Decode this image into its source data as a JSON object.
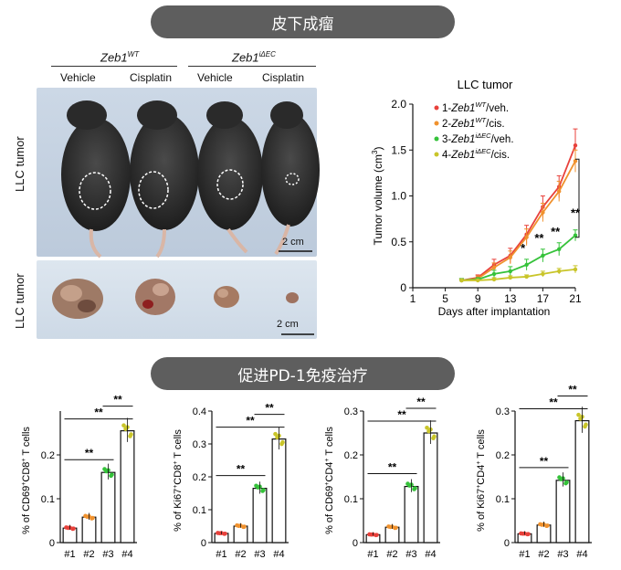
{
  "banners": {
    "top": "皮下成瘤",
    "mid": "促进PD-1免疫治疗"
  },
  "photo": {
    "groups": [
      {
        "base": "Zeb1",
        "sup": "WT"
      },
      {
        "base": "Zeb1",
        "sup": "iΔEC"
      }
    ],
    "columns": [
      "Vehicle",
      "Cisplatin",
      "Vehicle",
      "Cisplatin"
    ],
    "row_label_mice": "LLC tumor",
    "row_label_tumors": "LLC tumor",
    "scale_mice": "2 cm",
    "scale_tumors": "2 cm"
  },
  "colors": {
    "g1": "#e8413b",
    "g2": "#f0922e",
    "g3": "#35c23a",
    "g4": "#c9c52a"
  },
  "chart_data": [
    {
      "type": "line",
      "title": "LLC tumor",
      "xlabel": "Days after implantation",
      "ylabel": "Tumor volume (cm3)",
      "x": [
        7,
        9,
        11,
        13,
        15,
        17,
        19,
        21
      ],
      "xticks": [
        1,
        5,
        9,
        13,
        17,
        21
      ],
      "xlim": [
        1,
        21
      ],
      "ylim": [
        0,
        2.0
      ],
      "yticks": [
        "0",
        "0.5",
        "1.0",
        "1.5",
        "2.0"
      ],
      "series": [
        {
          "name": "1-Zeb1WT/veh.",
          "legend_base": "1-Zeb1",
          "legend_sup": "WT",
          "legend_tail": "/veh.",
          "values": [
            0.08,
            0.11,
            0.25,
            0.35,
            0.58,
            0.88,
            1.1,
            1.55
          ],
          "err": [
            0.02,
            0.03,
            0.06,
            0.08,
            0.1,
            0.12,
            0.12,
            0.18
          ]
        },
        {
          "name": "2-Zeb1WT/cis.",
          "legend_base": "2-Zeb1",
          "legend_sup": "WT",
          "legend_tail": "/cis.",
          "values": [
            0.08,
            0.1,
            0.22,
            0.33,
            0.55,
            0.82,
            1.05,
            1.38
          ],
          "err": [
            0.02,
            0.03,
            0.05,
            0.07,
            0.09,
            0.1,
            0.11,
            0.12
          ]
        },
        {
          "name": "3-Zeb1iΔEC/veh.",
          "legend_base": "3-Zeb1",
          "legend_sup": "iΔEC",
          "legend_tail": "/veh.",
          "values": [
            0.08,
            0.09,
            0.15,
            0.18,
            0.25,
            0.35,
            0.42,
            0.57
          ],
          "err": [
            0.02,
            0.02,
            0.04,
            0.05,
            0.06,
            0.07,
            0.07,
            0.06
          ]
        },
        {
          "name": "4-Zeb1iΔEC/cis.",
          "legend_base": "4-Zeb1",
          "legend_sup": "iΔEC",
          "legend_tail": "/cis.",
          "values": [
            0.08,
            0.08,
            0.09,
            0.11,
            0.12,
            0.15,
            0.18,
            0.2
          ],
          "err": [
            0.01,
            0.01,
            0.02,
            0.02,
            0.02,
            0.03,
            0.03,
            0.04
          ]
        }
      ],
      "annotations": [
        {
          "x": 15,
          "label": "*"
        },
        {
          "x": 17,
          "label": "**"
        },
        {
          "x": 19,
          "label": "**"
        },
        {
          "x": 21,
          "label": "**"
        }
      ]
    },
    {
      "type": "bar",
      "ylabel_a": "% of CD69",
      "ylabel_b": "CD8",
      "ylabel_c": " T cells",
      "categories": [
        "#1",
        "#2",
        "#3",
        "#4"
      ],
      "values": [
        0.033,
        0.058,
        0.16,
        0.255
      ],
      "ylim": [
        0,
        0.3
      ],
      "yticks": [
        "0",
        "0.1",
        "0.2"
      ],
      "ytick_vals": [
        0,
        0.1,
        0.2
      ],
      "sig": [
        {
          "from": 1,
          "to": 3,
          "label": "**"
        },
        {
          "from": 1,
          "to": 4,
          "label": "**"
        },
        {
          "from": 3,
          "to": 4,
          "label": "**"
        }
      ]
    },
    {
      "type": "bar",
      "ylabel_a": "% of Ki67",
      "ylabel_b": "CD8",
      "ylabel_c": " T cells",
      "categories": [
        "#1",
        "#2",
        "#3",
        "#4"
      ],
      "values": [
        0.028,
        0.05,
        0.165,
        0.315
      ],
      "ylim": [
        0,
        0.4
      ],
      "yticks": [
        "0",
        "0.1",
        "0.2",
        "0.3",
        "0.4"
      ],
      "ytick_vals": [
        0,
        0.1,
        0.2,
        0.3,
        0.4
      ],
      "sig": [
        {
          "from": 1,
          "to": 3,
          "label": "**"
        },
        {
          "from": 1,
          "to": 4,
          "label": "**"
        },
        {
          "from": 3,
          "to": 4,
          "label": "**"
        }
      ]
    },
    {
      "type": "bar",
      "ylabel_a": "% of CD69",
      "ylabel_b": "CD4",
      "ylabel_c": " T cells",
      "categories": [
        "#1",
        "#2",
        "#3",
        "#4"
      ],
      "values": [
        0.018,
        0.035,
        0.128,
        0.25
      ],
      "ylim": [
        0,
        0.3
      ],
      "yticks": [
        "0",
        "0.1",
        "0.2",
        "0.3"
      ],
      "ytick_vals": [
        0,
        0.1,
        0.2,
        0.3
      ],
      "sig": [
        {
          "from": 1,
          "to": 3,
          "label": "**"
        },
        {
          "from": 1,
          "to": 4,
          "label": "**"
        },
        {
          "from": 3,
          "to": 4,
          "label": "**"
        }
      ]
    },
    {
      "type": "bar",
      "ylabel_a": "% of Ki67",
      "ylabel_b": "CD4",
      "ylabel_c": " T cells",
      "categories": [
        "#1",
        "#2",
        "#3",
        "#4"
      ],
      "values": [
        0.02,
        0.04,
        0.142,
        0.278
      ],
      "ylim": [
        0,
        0.3
      ],
      "yticks": [
        "0",
        "0.1",
        "0.2",
        "0.3"
      ],
      "ytick_vals": [
        0,
        0.1,
        0.2,
        0.3
      ],
      "sig": [
        {
          "from": 1,
          "to": 3,
          "label": "**"
        },
        {
          "from": 1,
          "to": 4,
          "label": "**"
        },
        {
          "from": 3,
          "to": 4,
          "label": "**"
        }
      ]
    }
  ]
}
